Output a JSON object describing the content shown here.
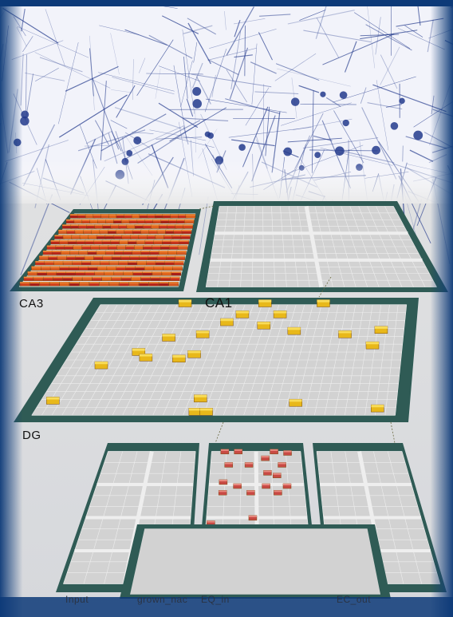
{
  "labels": {
    "ca3": "CA3",
    "ca1": "CA1",
    "dg": "DG",
    "input": "Input",
    "grown_nac": "grown_nac",
    "eq_in": "EQ_in",
    "ec_out": "EC_out"
  },
  "colors": {
    "frame_blue": "#0d3a78",
    "layer_border": "#2f5b55",
    "grid_gray": "#c8c8c8",
    "unit_active_yellow": "#e8b81a",
    "unit_active_red": "#c8301e",
    "unit_active_orange": "#e0631c",
    "neuron_ink": "#233a8c"
  },
  "icons": [
    "neuron-texture-image",
    "connection-line"
  ]
}
